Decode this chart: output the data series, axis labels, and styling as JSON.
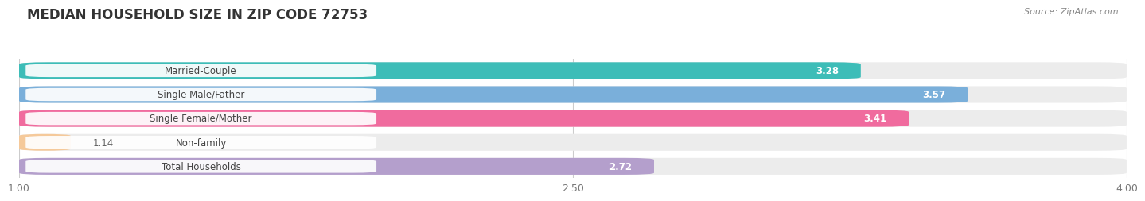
{
  "title": "MEDIAN HOUSEHOLD SIZE IN ZIP CODE 72753",
  "source": "Source: ZipAtlas.com",
  "categories": [
    "Married-Couple",
    "Single Male/Father",
    "Single Female/Mother",
    "Non-family",
    "Total Households"
  ],
  "values": [
    3.28,
    3.57,
    3.41,
    1.14,
    2.72
  ],
  "bar_colors": [
    "#3dbdb8",
    "#7aafda",
    "#f06b9e",
    "#f5c99a",
    "#b49fcc"
  ],
  "xlim": [
    1.0,
    4.0
  ],
  "xticks": [
    1.0,
    2.5,
    4.0
  ],
  "value_fontsize": 8.5,
  "label_fontsize": 8.5,
  "title_fontsize": 12,
  "fig_bg_color": "#ffffff",
  "bg_bar_color": "#ececec",
  "label_pill_color": "#ffffff",
  "grid_color": "#cccccc",
  "title_color": "#333333",
  "source_color": "#888888",
  "label_text_color": "#444444",
  "value_text_color_inside": "#ffffff",
  "value_text_color_outside": "#666666"
}
